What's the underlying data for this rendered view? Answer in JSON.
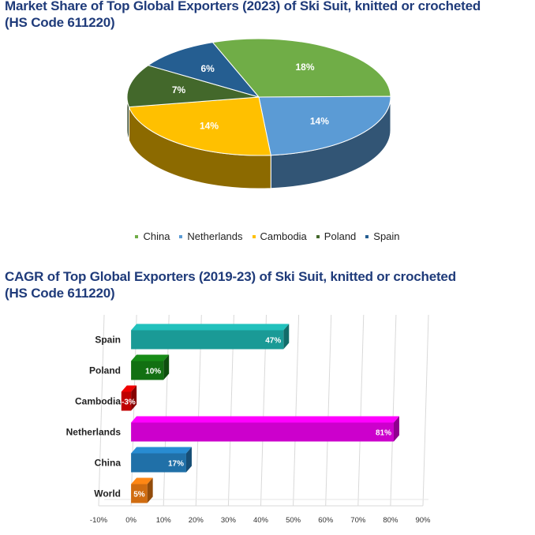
{
  "pie_title_line1": "Market Share of Top Global Exporters (2023) of Ski Suit, knitted or crocheted",
  "pie_title_line2": "(HS Code 611220)",
  "bar_title_line1": "CAGR of Top Global Exporters (2019-23) of Ski Suit, knitted or crocheted",
  "bar_title_line2": "(HS Code 611220)",
  "chart_data": [
    {
      "type": "pie",
      "title": "Market Share of Top Global Exporters (2023) of Ski Suit, knitted or crocheted (HS Code 611220)",
      "categories": [
        "China",
        "Netherlands",
        "Cambodia",
        "Poland",
        "Spain"
      ],
      "values": [
        18,
        14,
        14,
        7,
        6
      ],
      "labels": [
        "18%",
        "14%",
        "14%",
        "7%",
        "6%"
      ],
      "colors": [
        "#70ad47",
        "#5b9bd5",
        "#ffc000",
        "#43682b",
        "#255e91"
      ],
      "legend_position": "bottom",
      "style": "3d"
    },
    {
      "type": "bar",
      "orientation": "horizontal",
      "title": "CAGR of Top Global Exporters (2019-23) of Ski Suit, knitted or crocheted (HS Code 611220)",
      "categories": [
        "Spain",
        "Poland",
        "Cambodia",
        "Netherlands",
        "China",
        "World"
      ],
      "values": [
        47,
        10,
        -3,
        81,
        17,
        5
      ],
      "labels": [
        "47%",
        "10%",
        "-3%",
        "81%",
        "17%",
        "5%"
      ],
      "colors": [
        "#1a9a96",
        "#127012",
        "#c00000",
        "#cc00cc",
        "#2070a8",
        "#d06c10"
      ],
      "xlim": [
        -10,
        90
      ],
      "xticks": [
        -10,
        0,
        10,
        20,
        30,
        40,
        50,
        60,
        70,
        80,
        90
      ],
      "xtick_labels": [
        "-10%",
        "0%",
        "10%",
        "20%",
        "30%",
        "40%",
        "50%",
        "60%",
        "70%",
        "80%",
        "90%"
      ],
      "grid": true,
      "style": "3d"
    }
  ]
}
